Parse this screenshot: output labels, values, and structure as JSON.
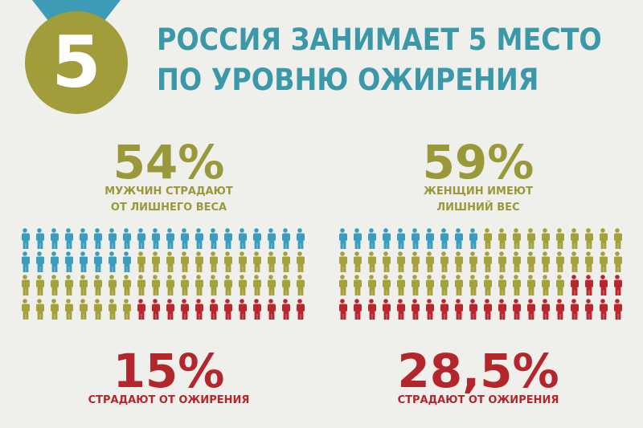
{
  "badge": "5",
  "title": [
    "РОССИЯ ЗАНИМАЕТ 5 МЕСТО",
    "ПО УРОВНЮ ОЖИРЕНИЯ"
  ],
  "men": {
    "overweight": "54%",
    "overweight_caption": [
      "МУЖЧИН СТРАДАЮТ",
      "ОТ ЛИШНЕГО ВЕСА"
    ],
    "obese": "15%",
    "obese_caption": "СТРАДАЮТ ОТ ОЖИРЕНИЯ"
  },
  "women": {
    "overweight": "59%",
    "overweight_caption": [
      "ЖЕНЩИН ИМЕЮТ",
      "ЛИШНИЙ ВЕС"
    ],
    "obese": "28,5%",
    "obese_caption": "СТРАДАЮТ ОТ ОЖИРЕНИЯ"
  }
}
